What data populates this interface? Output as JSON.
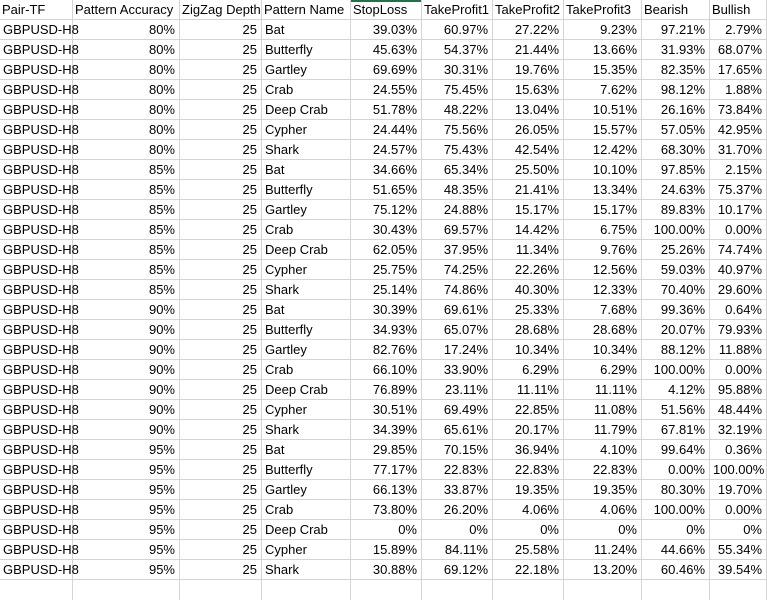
{
  "colors": {
    "selection_green": "#217346",
    "gridline": "#d4d4d4",
    "background": "#ffffff",
    "text": "#000000"
  },
  "selection": {
    "note_label": "active-cell-border-top-stoploss-header"
  },
  "table": {
    "columns": [
      {
        "key": "pair-tf",
        "label": "Pair-TF",
        "align": "left"
      },
      {
        "key": "pattern-accuracy",
        "label": "Pattern Accuracy",
        "align": "right"
      },
      {
        "key": "zigzag-depth",
        "label": "ZigZag Depth",
        "align": "right"
      },
      {
        "key": "pattern-name",
        "label": "Pattern Name",
        "align": "left"
      },
      {
        "key": "stoploss",
        "label": "StopLoss",
        "align": "right"
      },
      {
        "key": "takeprofit1",
        "label": "TakeProfit1",
        "align": "right"
      },
      {
        "key": "takeprofit2",
        "label": "TakeProfit2",
        "align": "right"
      },
      {
        "key": "takeprofit3",
        "label": "TakeProfit3",
        "align": "right"
      },
      {
        "key": "bearish",
        "label": "Bearish",
        "align": "right"
      },
      {
        "key": "bullish",
        "label": "Bullish",
        "align": "right"
      }
    ],
    "rows": [
      [
        "GBPUSD-H8",
        "80%",
        "25",
        "Bat",
        "39.03%",
        "60.97%",
        "27.22%",
        "9.23%",
        "97.21%",
        "2.79%"
      ],
      [
        "GBPUSD-H8",
        "80%",
        "25",
        "Butterfly",
        "45.63%",
        "54.37%",
        "21.44%",
        "13.66%",
        "31.93%",
        "68.07%"
      ],
      [
        "GBPUSD-H8",
        "80%",
        "25",
        "Gartley",
        "69.69%",
        "30.31%",
        "19.76%",
        "15.35%",
        "82.35%",
        "17.65%"
      ],
      [
        "GBPUSD-H8",
        "80%",
        "25",
        "Crab",
        "24.55%",
        "75.45%",
        "15.63%",
        "7.62%",
        "98.12%",
        "1.88%"
      ],
      [
        "GBPUSD-H8",
        "80%",
        "25",
        "Deep Crab",
        "51.78%",
        "48.22%",
        "13.04%",
        "10.51%",
        "26.16%",
        "73.84%"
      ],
      [
        "GBPUSD-H8",
        "80%",
        "25",
        "Cypher",
        "24.44%",
        "75.56%",
        "26.05%",
        "15.57%",
        "57.05%",
        "42.95%"
      ],
      [
        "GBPUSD-H8",
        "80%",
        "25",
        "Shark",
        "24.57%",
        "75.43%",
        "42.54%",
        "12.42%",
        "68.30%",
        "31.70%"
      ],
      [
        "GBPUSD-H8",
        "85%",
        "25",
        "Bat",
        "34.66%",
        "65.34%",
        "25.50%",
        "10.10%",
        "97.85%",
        "2.15%"
      ],
      [
        "GBPUSD-H8",
        "85%",
        "25",
        "Butterfly",
        "51.65%",
        "48.35%",
        "21.41%",
        "13.34%",
        "24.63%",
        "75.37%"
      ],
      [
        "GBPUSD-H8",
        "85%",
        "25",
        "Gartley",
        "75.12%",
        "24.88%",
        "15.17%",
        "15.17%",
        "89.83%",
        "10.17%"
      ],
      [
        "GBPUSD-H8",
        "85%",
        "25",
        "Crab",
        "30.43%",
        "69.57%",
        "14.42%",
        "6.75%",
        "100.00%",
        "0.00%"
      ],
      [
        "GBPUSD-H8",
        "85%",
        "25",
        "Deep Crab",
        "62.05%",
        "37.95%",
        "11.34%",
        "9.76%",
        "25.26%",
        "74.74%"
      ],
      [
        "GBPUSD-H8",
        "85%",
        "25",
        "Cypher",
        "25.75%",
        "74.25%",
        "22.26%",
        "12.56%",
        "59.03%",
        "40.97%"
      ],
      [
        "GBPUSD-H8",
        "85%",
        "25",
        "Shark",
        "25.14%",
        "74.86%",
        "40.30%",
        "12.33%",
        "70.40%",
        "29.60%"
      ],
      [
        "GBPUSD-H8",
        "90%",
        "25",
        "Bat",
        "30.39%",
        "69.61%",
        "25.33%",
        "7.68%",
        "99.36%",
        "0.64%"
      ],
      [
        "GBPUSD-H8",
        "90%",
        "25",
        "Butterfly",
        "34.93%",
        "65.07%",
        "28.68%",
        "28.68%",
        "20.07%",
        "79.93%"
      ],
      [
        "GBPUSD-H8",
        "90%",
        "25",
        "Gartley",
        "82.76%",
        "17.24%",
        "10.34%",
        "10.34%",
        "88.12%",
        "11.88%"
      ],
      [
        "GBPUSD-H8",
        "90%",
        "25",
        "Crab",
        "66.10%",
        "33.90%",
        "6.29%",
        "6.29%",
        "100.00%",
        "0.00%"
      ],
      [
        "GBPUSD-H8",
        "90%",
        "25",
        "Deep Crab",
        "76.89%",
        "23.11%",
        "11.11%",
        "11.11%",
        "4.12%",
        "95.88%"
      ],
      [
        "GBPUSD-H8",
        "90%",
        "25",
        "Cypher",
        "30.51%",
        "69.49%",
        "22.85%",
        "11.08%",
        "51.56%",
        "48.44%"
      ],
      [
        "GBPUSD-H8",
        "90%",
        "25",
        "Shark",
        "34.39%",
        "65.61%",
        "20.17%",
        "11.79%",
        "67.81%",
        "32.19%"
      ],
      [
        "GBPUSD-H8",
        "95%",
        "25",
        "Bat",
        "29.85%",
        "70.15%",
        "36.94%",
        "4.10%",
        "99.64%",
        "0.36%"
      ],
      [
        "GBPUSD-H8",
        "95%",
        "25",
        "Butterfly",
        "77.17%",
        "22.83%",
        "22.83%",
        "22.83%",
        "0.00%",
        "100.00%"
      ],
      [
        "GBPUSD-H8",
        "95%",
        "25",
        "Gartley",
        "66.13%",
        "33.87%",
        "19.35%",
        "19.35%",
        "80.30%",
        "19.70%"
      ],
      [
        "GBPUSD-H8",
        "95%",
        "25",
        "Crab",
        "73.80%",
        "26.20%",
        "4.06%",
        "4.06%",
        "100.00%",
        "0.00%"
      ],
      [
        "GBPUSD-H8",
        "95%",
        "25",
        "Deep Crab",
        "0%",
        "0%",
        "0%",
        "0%",
        "0%",
        "0%"
      ],
      [
        "GBPUSD-H8",
        "95%",
        "25",
        "Cypher",
        "15.89%",
        "84.11%",
        "25.58%",
        "11.24%",
        "44.66%",
        "55.34%"
      ],
      [
        "GBPUSD-H8",
        "95%",
        "25",
        "Shark",
        "30.88%",
        "69.12%",
        "22.18%",
        "13.20%",
        "60.46%",
        "39.54%"
      ]
    ]
  }
}
